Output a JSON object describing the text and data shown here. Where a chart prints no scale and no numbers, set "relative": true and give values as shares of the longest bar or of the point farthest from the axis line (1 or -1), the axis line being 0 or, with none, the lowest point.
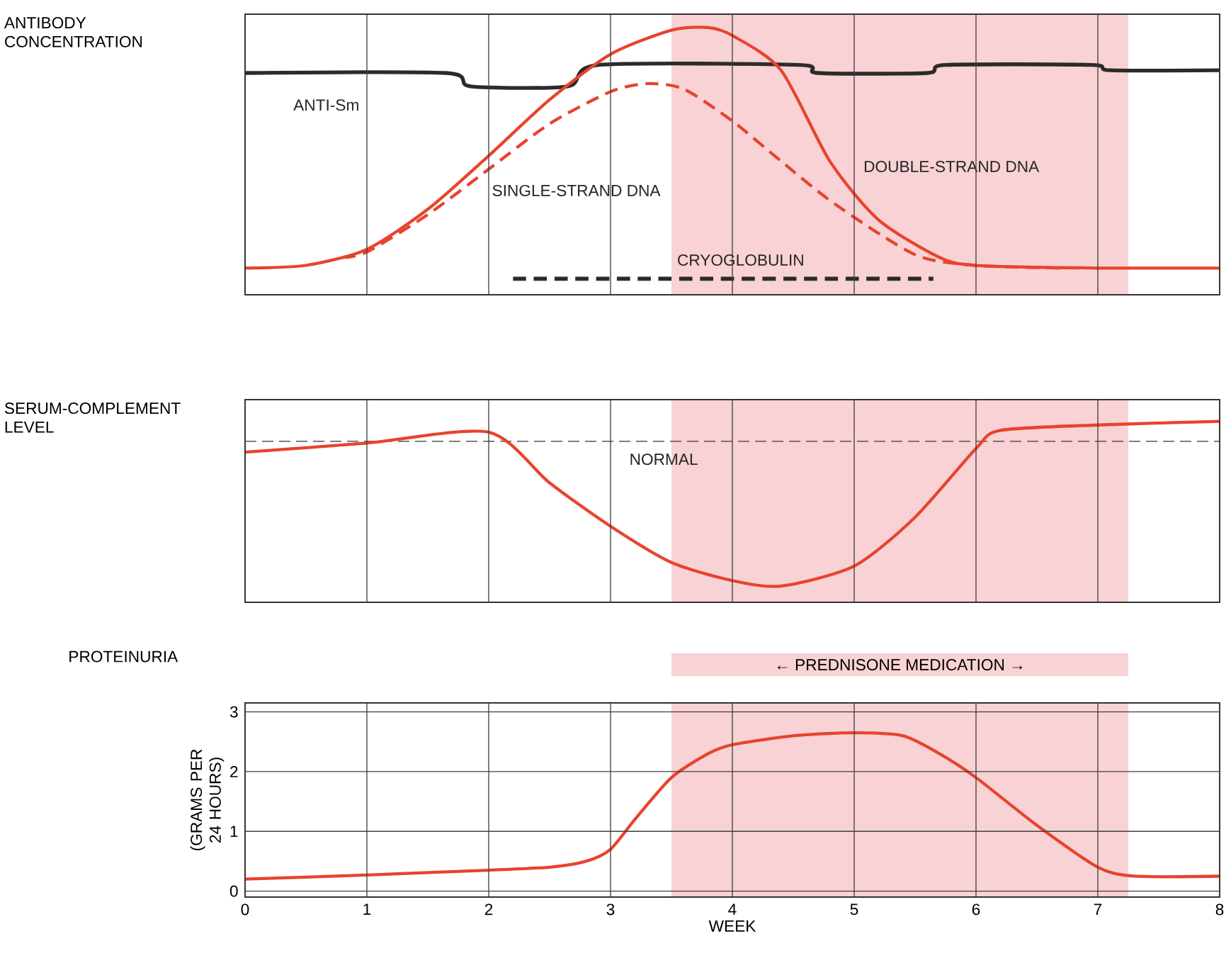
{
  "chart_data": [
    {
      "type": "line",
      "ylabel": "ANTIBODY CONCENTRATION",
      "relative": true,
      "xlim": [
        0,
        8
      ],
      "xticks": [
        0,
        1,
        2,
        3,
        4,
        5,
        6,
        7,
        8
      ],
      "tick_labels": false,
      "grid": "x",
      "bands": [
        {
          "axis": "x",
          "from": 3.5,
          "to": 7.25,
          "color": "#f8d2d5"
        }
      ],
      "series": [
        {
          "name": "ANTI-Sm",
          "color": "#2b2b2b",
          "line_style": "solid",
          "x": [
            0,
            1.65,
            1.85,
            2.65,
            2.9,
            4.55,
            4.7,
            5.6,
            5.75,
            6.95,
            7.1,
            8
          ],
          "values": [
            0.83,
            0.83,
            0.78,
            0.78,
            0.86,
            0.86,
            0.83,
            0.83,
            0.86,
            0.86,
            0.84,
            0.84
          ]
        },
        {
          "name": "DOUBLE-STRAND DNA",
          "color": "#e8432e",
          "line_style": "solid",
          "x": [
            0,
            0.5,
            1,
            1.5,
            2,
            2.5,
            3,
            3.5,
            3.8,
            4,
            4.4,
            4.8,
            5.2,
            5.7,
            6,
            7,
            8
          ],
          "values": [
            0.1,
            0.11,
            0.17,
            0.32,
            0.52,
            0.73,
            0.9,
            0.99,
            1.0,
            0.97,
            0.84,
            0.5,
            0.28,
            0.14,
            0.11,
            0.1,
            0.1
          ]
        },
        {
          "name": "SINGLE-STRAND DNA",
          "color": "#e8432e",
          "line_style": "dashed",
          "x": [
            0.8,
            1,
            1.5,
            2,
            2.5,
            3,
            3.3,
            3.6,
            4,
            4.4,
            4.84,
            5.5,
            6,
            6.7
          ],
          "values": [
            0.14,
            0.16,
            0.3,
            0.47,
            0.64,
            0.76,
            0.79,
            0.77,
            0.65,
            0.5,
            0.34,
            0.15,
            0.11,
            0.1
          ]
        },
        {
          "name": "CRYOGLOBULIN",
          "color": "#2b2b2b",
          "line_style": "dashed",
          "x": [
            2.2,
            5.65
          ],
          "values": [
            0.06,
            0.06
          ]
        }
      ]
    },
    {
      "type": "line",
      "ylabel": "SERUM-COMPLEMENT LEVEL",
      "relative": true,
      "xlim": [
        0,
        8
      ],
      "xticks": [
        0,
        1,
        2,
        3,
        4,
        5,
        6,
        7,
        8
      ],
      "tick_labels": false,
      "grid": "x",
      "bands": [
        {
          "axis": "x",
          "from": 3.5,
          "to": 7.25,
          "color": "#f8d2d5"
        }
      ],
      "ref_lines": [
        {
          "axis": "y",
          "value": 0.89,
          "label": "NORMAL",
          "color": "#555555",
          "line_style": "dashed"
        }
      ],
      "series": [
        {
          "color": "#e8432e",
          "line_style": "solid",
          "x": [
            0,
            1,
            2,
            2.5,
            3,
            3.5,
            4,
            4.4,
            5,
            5.5,
            6,
            6.2,
            7,
            8
          ],
          "values": [
            0.83,
            0.88,
            0.94,
            0.66,
            0.42,
            0.22,
            0.12,
            0.09,
            0.2,
            0.47,
            0.85,
            0.95,
            0.98,
            1.0
          ]
        }
      ]
    },
    {
      "type": "line",
      "title": "PROTEINURIA",
      "ylabel": "(GRAMS PER 24 HOURS)",
      "xlabel": "WEEK",
      "xlim": [
        0,
        8
      ],
      "ylim": [
        -0.1,
        3.15
      ],
      "xticks": [
        0,
        1,
        2,
        3,
        4,
        5,
        6,
        7,
        8
      ],
      "yticks": [
        0,
        1,
        2,
        3
      ],
      "grid": true,
      "bands": [
        {
          "axis": "x",
          "from": 3.5,
          "to": 7.25,
          "color": "#f8d2d5",
          "label": "← PREDNISONE MEDICATION →"
        }
      ],
      "series": [
        {
          "color": "#e8432e",
          "line_style": "solid",
          "x": [
            0,
            1,
            2,
            2.5,
            2.8,
            3,
            3.2,
            3.5,
            3.8,
            4,
            4.5,
            5,
            5.4,
            5.7,
            6,
            6.5,
            7,
            7.3,
            8
          ],
          "values": [
            0.2,
            0.27,
            0.35,
            0.4,
            0.5,
            0.7,
            1.2,
            1.9,
            2.3,
            2.45,
            2.6,
            2.65,
            2.6,
            2.3,
            1.9,
            1.1,
            0.4,
            0.25,
            0.25
          ]
        }
      ]
    }
  ]
}
